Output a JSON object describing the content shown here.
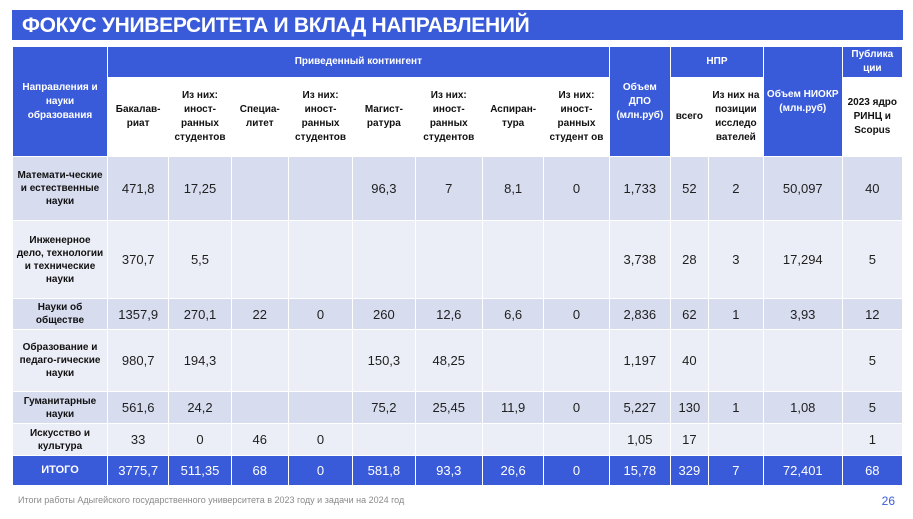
{
  "title": "ФОКУС УНИВЕРСИТЕТА И ВКЛАД НАПРАВЛЕНИЙ",
  "header": {
    "directions": "Направления и науки образования",
    "contingent_group": "Приведенный контингент",
    "bachelor": "Бакалав-риат",
    "bachelor_foreign": "Из них: иност-ранных студентов",
    "specialist": "Специа-литет",
    "specialist_foreign": "Из них: иност-ранных студентов",
    "master": "Магист-ратура",
    "master_foreign": "Из них: иност-ранных студентов",
    "postgrad": "Аспиран-тура",
    "postgrad_foreign": "Из них: иност-ранных студент ов",
    "dpo": "Объем ДПО (млн.руб)",
    "npr_group": "НПР",
    "npr_total": "всего",
    "npr_research": "Из них на позиции исследо вателей",
    "niokr": "Объем НИОКР (млн.руб)",
    "pub_group": "Публика ции",
    "pub_sub": "2023 ядро РИНЦ и Scopus"
  },
  "rows": [
    {
      "name": "Математи-ческие и естественные науки",
      "bach": "471,8",
      "bach_f": "17,25",
      "spec": "",
      "spec_f": "",
      "mag": "96,3",
      "mag_f": "7",
      "asp": "8,1",
      "asp_f": "0",
      "dpo": "1,733",
      "npr": "52",
      "npr_r": "2",
      "niokr": "50,097",
      "pub": "40"
    },
    {
      "name": "Инженерное дело, технологии и технические науки",
      "bach": "370,7",
      "bach_f": "5,5",
      "spec": "",
      "spec_f": "",
      "mag": "",
      "mag_f": "",
      "asp": "",
      "asp_f": "",
      "dpo": "3,738",
      "npr": "28",
      "npr_r": "3",
      "niokr": "17,294",
      "pub": "5"
    },
    {
      "name": "Науки об обществе",
      "bach": "1357,9",
      "bach_f": "270,1",
      "spec": "22",
      "spec_f": "0",
      "mag": "260",
      "mag_f": "12,6",
      "asp": "6,6",
      "asp_f": "0",
      "dpo": "2,836",
      "npr": "62",
      "npr_r": "1",
      "niokr": "3,93",
      "pub": "12"
    },
    {
      "name": "Образование и педаго-гические науки",
      "bach": "980,7",
      "bach_f": "194,3",
      "spec": "",
      "spec_f": "",
      "mag": "150,3",
      "mag_f": "48,25",
      "asp": "",
      "asp_f": "",
      "dpo": "1,197",
      "npr": "40",
      "npr_r": "",
      "niokr": "",
      "pub": "5"
    },
    {
      "name": "Гуманитарные науки",
      "bach": "561,6",
      "bach_f": "24,2",
      "spec": "",
      "spec_f": "",
      "mag": "75,2",
      "mag_f": "25,45",
      "asp": "11,9",
      "asp_f": "0",
      "dpo": "5,227",
      "npr": "130",
      "npr_r": "1",
      "niokr": "1,08",
      "pub": "5"
    },
    {
      "name": "Искусство и культура",
      "bach": "33",
      "bach_f": "0",
      "spec": "46",
      "spec_f": "0",
      "mag": "",
      "mag_f": "",
      "asp": "",
      "asp_f": "",
      "dpo": "1,05",
      "npr": "17",
      "npr_r": "",
      "niokr": "",
      "pub": "1"
    }
  ],
  "total": {
    "name": "ИТОГО",
    "bach": "3775,7",
    "bach_f": "511,35",
    "spec": "68",
    "spec_f": "0",
    "mag": "581,8",
    "mag_f": "93,3",
    "asp": "26,6",
    "asp_f": "0",
    "dpo": "15,78",
    "npr": "329",
    "npr_r": "7",
    "niokr": "72,401",
    "pub": "68"
  },
  "footer": "Итоги работы Адыгейского государственного университета в 2023 году и задачи на 2024 год",
  "page_number": "26"
}
